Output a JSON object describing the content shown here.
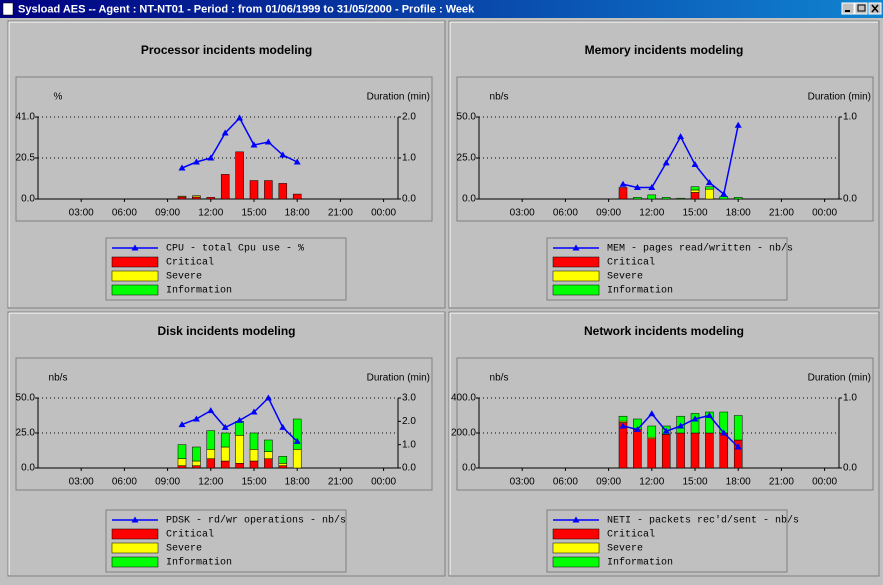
{
  "window_title": "Sysload AES -- Agent : NT-NT01 - Period : from 01/06/1999 to 31/05/2000 - Profile : Week",
  "chart_data": [
    {
      "type": "combo",
      "title": "Processor incidents modeling",
      "ylabel": "%",
      "y2label": "Duration (min)",
      "x": [
        10,
        11,
        12,
        13,
        14,
        15,
        16,
        17,
        18
      ],
      "xlim": [
        0,
        25
      ],
      "xticks": [
        {
          "value": 3,
          "label": "03:00"
        },
        {
          "value": 6,
          "label": "06:00"
        },
        {
          "value": 9,
          "label": "09:00"
        },
        {
          "value": 12,
          "label": "12:00"
        },
        {
          "value": 15,
          "label": "15:00"
        },
        {
          "value": 18,
          "label": "18:00"
        },
        {
          "value": 21,
          "label": "21:00"
        },
        {
          "value": 24,
          "label": "00:00"
        }
      ],
      "ylim": [
        0,
        41
      ],
      "yticks": [
        {
          "value": 0,
          "label": "0.0"
        },
        {
          "value": 20.5,
          "label": "20.5"
        },
        {
          "value": 41,
          "label": "41.0"
        }
      ],
      "y2lim": [
        0,
        2
      ],
      "y2ticks": [
        {
          "value": 0,
          "label": "0.0"
        },
        {
          "value": 1,
          "label": "1.0"
        },
        {
          "value": 2,
          "label": "2.0"
        }
      ],
      "grid": true,
      "series": [
        {
          "name": "CPU - total Cpu use - %",
          "color": "#0000ff",
          "type": "line",
          "values": [
            15.5,
            18.5,
            20.5,
            33,
            40.5,
            27,
            28.5,
            22,
            18.5
          ]
        },
        {
          "name": "Critical",
          "color": "#ff0000",
          "type": "bar",
          "axis": "y2",
          "values": [
            0.05,
            0.05,
            0.04,
            0.6,
            1.15,
            0.45,
            0.45,
            0.38,
            0.12
          ]
        },
        {
          "name": "Severe",
          "color": "#ffff00",
          "type": "bar",
          "axis": "y2",
          "values": [
            0.02,
            0.03,
            0,
            0,
            0,
            0,
            0,
            0,
            0
          ]
        },
        {
          "name": "Information",
          "color": "#00ff00",
          "type": "bar",
          "axis": "y2",
          "values": [
            0,
            0,
            0,
            0,
            0,
            0,
            0,
            0,
            0
          ]
        }
      ]
    },
    {
      "type": "combo",
      "title": "Memory incidents modeling",
      "ylabel": "nb/s",
      "y2label": "Duration (min)",
      "x": [
        10,
        11,
        12,
        13,
        14,
        15,
        16,
        17,
        18
      ],
      "xlim": [
        0,
        25
      ],
      "xticks": [
        {
          "value": 3,
          "label": "03:00"
        },
        {
          "value": 6,
          "label": "06:00"
        },
        {
          "value": 9,
          "label": "09:00"
        },
        {
          "value": 12,
          "label": "12:00"
        },
        {
          "value": 15,
          "label": "15:00"
        },
        {
          "value": 18,
          "label": "18:00"
        },
        {
          "value": 21,
          "label": "21:00"
        },
        {
          "value": 24,
          "label": "00:00"
        }
      ],
      "ylim": [
        0,
        50
      ],
      "yticks": [
        {
          "value": 0,
          "label": "0.0"
        },
        {
          "value": 25,
          "label": "25.0"
        },
        {
          "value": 50,
          "label": "50.0"
        }
      ],
      "y2lim": [
        0,
        1
      ],
      "y2ticks": [
        {
          "value": 0,
          "label": "0.0"
        },
        {
          "value": 1,
          "label": "1.0"
        }
      ],
      "grid": true,
      "series": [
        {
          "name": "MEM - pages read/written - nb/s",
          "color": "#0000ff",
          "type": "line",
          "values": [
            9,
            7,
            7,
            22,
            38,
            21,
            10,
            3,
            45
          ]
        },
        {
          "name": "Critical",
          "color": "#ff0000",
          "type": "bar",
          "axis": "y2",
          "values": [
            0.14,
            0,
            0,
            0,
            0,
            0.08,
            0,
            0,
            0
          ]
        },
        {
          "name": "Severe",
          "color": "#ffff00",
          "type": "bar",
          "axis": "y2",
          "values": [
            0,
            0,
            0,
            0,
            0,
            0.03,
            0.12,
            0,
            0
          ]
        },
        {
          "name": "Information",
          "color": "#00ff00",
          "type": "bar",
          "axis": "y2",
          "values": [
            0,
            0.02,
            0.05,
            0.02,
            0.01,
            0.04,
            0.03,
            0.03,
            0.02
          ]
        }
      ]
    },
    {
      "type": "combo",
      "title": "Disk incidents modeling",
      "ylabel": "nb/s",
      "y2label": "Duration (min)",
      "x": [
        10,
        11,
        12,
        13,
        14,
        15,
        16,
        17,
        18
      ],
      "xlim": [
        0,
        25
      ],
      "xticks": [
        {
          "value": 3,
          "label": "03:00"
        },
        {
          "value": 6,
          "label": "06:00"
        },
        {
          "value": 9,
          "label": "09:00"
        },
        {
          "value": 12,
          "label": "12:00"
        },
        {
          "value": 15,
          "label": "15:00"
        },
        {
          "value": 18,
          "label": "18:00"
        },
        {
          "value": 21,
          "label": "21:00"
        },
        {
          "value": 24,
          "label": "00:00"
        }
      ],
      "ylim": [
        0,
        50
      ],
      "yticks": [
        {
          "value": 0,
          "label": "0.0"
        },
        {
          "value": 25,
          "label": "25.0"
        },
        {
          "value": 50,
          "label": "50.0"
        }
      ],
      "y2lim": [
        0,
        3
      ],
      "y2ticks": [
        {
          "value": 0,
          "label": "0.0"
        },
        {
          "value": 1,
          "label": "1.0"
        },
        {
          "value": 2,
          "label": "2.0"
        },
        {
          "value": 3,
          "label": "3.0"
        }
      ],
      "grid": true,
      "series": [
        {
          "name": "PDSK - rd/wr operations - nb/s",
          "color": "#0000ff",
          "type": "line",
          "values": [
            31,
            35,
            41,
            29,
            34,
            40,
            50,
            29,
            19
          ]
        },
        {
          "name": "Critical",
          "color": "#ff0000",
          "type": "bar",
          "axis": "y2",
          "values": [
            0.1,
            0.1,
            0.4,
            0.3,
            0.2,
            0.3,
            0.4,
            0.1,
            0
          ]
        },
        {
          "name": "Severe",
          "color": "#ffff00",
          "type": "bar",
          "axis": "y2",
          "values": [
            0.3,
            0.2,
            0.4,
            0.6,
            1.2,
            0.5,
            0.3,
            0.1,
            0.8
          ]
        },
        {
          "name": "Information",
          "color": "#00ff00",
          "type": "bar",
          "axis": "y2",
          "values": [
            0.6,
            0.6,
            0.8,
            0.6,
            0.6,
            0.7,
            0.5,
            0.3,
            1.3
          ]
        }
      ]
    },
    {
      "type": "combo",
      "title": "Network incidents modeling",
      "ylabel": "nb/s",
      "y2label": "Duration (min)",
      "x": [
        10,
        11,
        12,
        13,
        14,
        15,
        16,
        17,
        18
      ],
      "xlim": [
        0,
        25
      ],
      "xticks": [
        {
          "value": 3,
          "label": "03:00"
        },
        {
          "value": 6,
          "label": "06:00"
        },
        {
          "value": 9,
          "label": "09:00"
        },
        {
          "value": 12,
          "label": "12:00"
        },
        {
          "value": 15,
          "label": "15:00"
        },
        {
          "value": 18,
          "label": "18:00"
        },
        {
          "value": 21,
          "label": "21:00"
        },
        {
          "value": 24,
          "label": "00:00"
        }
      ],
      "ylim": [
        0,
        400
      ],
      "yticks": [
        {
          "value": 0,
          "label": "0.0"
        },
        {
          "value": 200,
          "label": "200.0"
        },
        {
          "value": 400,
          "label": "400.0"
        }
      ],
      "y2lim": [
        0,
        1
      ],
      "y2ticks": [
        {
          "value": 0,
          "label": "0.0"
        },
        {
          "value": 1,
          "label": "1.0"
        }
      ],
      "grid": true,
      "series": [
        {
          "name": "NETI - packets rec'd/sent - nb/s",
          "color": "#0000ff",
          "type": "line",
          "values": [
            240,
            220,
            310,
            210,
            240,
            280,
            300,
            200,
            120
          ]
        },
        {
          "name": "Critical",
          "color": "#ff0000",
          "type": "bar",
          "axis": "y2",
          "values": [
            0.65,
            0.55,
            0.42,
            0.48,
            0.5,
            0.5,
            0.5,
            0.5,
            0.4
          ]
        },
        {
          "name": "Severe",
          "color": "#ffff00",
          "type": "bar",
          "axis": "y2",
          "values": [
            0.02,
            0,
            0.02,
            0,
            0,
            0,
            0,
            0,
            0
          ]
        },
        {
          "name": "Information",
          "color": "#00ff00",
          "type": "bar",
          "axis": "y2",
          "values": [
            0.07,
            0.15,
            0.16,
            0.12,
            0.24,
            0.28,
            0.3,
            0.3,
            0.35
          ]
        }
      ]
    }
  ]
}
